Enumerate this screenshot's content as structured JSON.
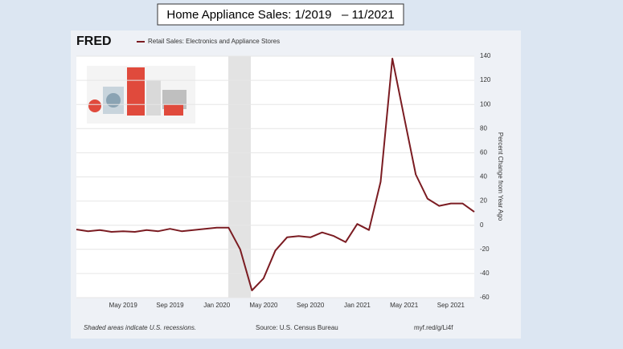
{
  "header": {
    "title": "Home Appliance Sales: 1/2019   – 11/2021"
  },
  "chart_data": {
    "type": "line",
    "logo": "FRED",
    "y_label": "Percent Change from Year Ago",
    "footer_note": "Shaded areas indicate U.S. recessions.",
    "source": "Source: U.S. Census Bureau",
    "link": "myf.red/g/Li4f",
    "categories": [
      null,
      null,
      null,
      null,
      "May 2019",
      null,
      null,
      null,
      "Sep 2019",
      null,
      null,
      null,
      "Jan 2020",
      null,
      null,
      null,
      "May 2020",
      null,
      null,
      null,
      "Sep 2020",
      null,
      null,
      null,
      "Jan 2021",
      null,
      null,
      null,
      "May 2021",
      null,
      null,
      null,
      "Sep 2021",
      null,
      null
    ],
    "series": [
      {
        "name": "Retail Sales: Electronics and Appliance Stores",
        "color": "#7b1c22",
        "values": [
          -3.5,
          -5,
          -4,
          -5.5,
          -5,
          -5.5,
          -4,
          -5,
          -3,
          -5,
          -4,
          -3,
          -2,
          -2,
          -20,
          -54,
          -44,
          -21,
          -10,
          -9,
          -10,
          -6,
          -9,
          -14,
          1,
          -4,
          36,
          138,
          90,
          42,
          22,
          16,
          18,
          18,
          11
        ]
      }
    ],
    "ylim": [
      -60,
      140
    ],
    "yticks": [
      -60,
      -40,
      -20,
      0,
      20,
      40,
      60,
      80,
      100,
      120,
      140
    ],
    "grid": true
  }
}
